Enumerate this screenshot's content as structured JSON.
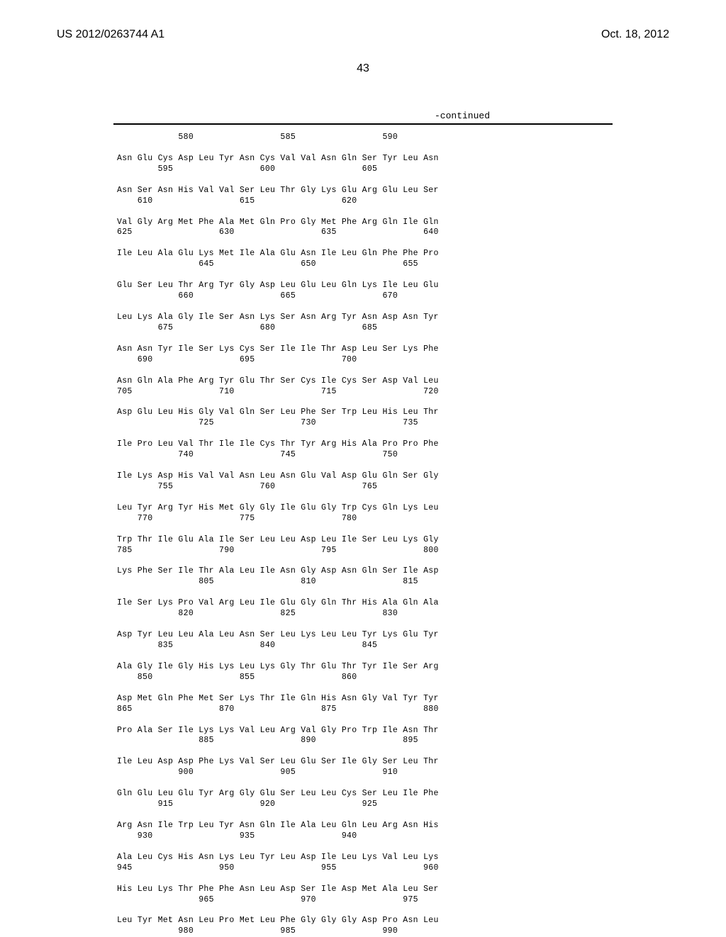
{
  "header": {
    "document_number": "US 2012/0263744 A1",
    "date": "Oct. 18, 2012"
  },
  "page_number": "43",
  "continued_label": "-continued",
  "sequence_rows": [
    {
      "type": "number",
      "text": "            580                 585                 590"
    },
    {
      "type": "blank"
    },
    {
      "type": "amino",
      "text": "Asn Glu Cys Asp Leu Tyr Asn Cys Val Val Asn Gln Ser Tyr Leu Asn"
    },
    {
      "type": "number",
      "text": "        595                 600                 605"
    },
    {
      "type": "blank"
    },
    {
      "type": "amino",
      "text": "Asn Ser Asn His Val Val Ser Leu Thr Gly Lys Glu Arg Glu Leu Ser"
    },
    {
      "type": "number",
      "text": "    610                 615                 620"
    },
    {
      "type": "blank"
    },
    {
      "type": "amino",
      "text": "Val Gly Arg Met Phe Ala Met Gln Pro Gly Met Phe Arg Gln Ile Gln"
    },
    {
      "type": "number",
      "text": "625                 630                 635                 640"
    },
    {
      "type": "blank"
    },
    {
      "type": "amino",
      "text": "Ile Leu Ala Glu Lys Met Ile Ala Glu Asn Ile Leu Gln Phe Phe Pro"
    },
    {
      "type": "number",
      "text": "                645                 650                 655"
    },
    {
      "type": "blank"
    },
    {
      "type": "amino",
      "text": "Glu Ser Leu Thr Arg Tyr Gly Asp Leu Glu Leu Gln Lys Ile Leu Glu"
    },
    {
      "type": "number",
      "text": "            660                 665                 670"
    },
    {
      "type": "blank"
    },
    {
      "type": "amino",
      "text": "Leu Lys Ala Gly Ile Ser Asn Lys Ser Asn Arg Tyr Asn Asp Asn Tyr"
    },
    {
      "type": "number",
      "text": "        675                 680                 685"
    },
    {
      "type": "blank"
    },
    {
      "type": "amino",
      "text": "Asn Asn Tyr Ile Ser Lys Cys Ser Ile Ile Thr Asp Leu Ser Lys Phe"
    },
    {
      "type": "number",
      "text": "    690                 695                 700"
    },
    {
      "type": "blank"
    },
    {
      "type": "amino",
      "text": "Asn Gln Ala Phe Arg Tyr Glu Thr Ser Cys Ile Cys Ser Asp Val Leu"
    },
    {
      "type": "number",
      "text": "705                 710                 715                 720"
    },
    {
      "type": "blank"
    },
    {
      "type": "amino",
      "text": "Asp Glu Leu His Gly Val Gln Ser Leu Phe Ser Trp Leu His Leu Thr"
    },
    {
      "type": "number",
      "text": "                725                 730                 735"
    },
    {
      "type": "blank"
    },
    {
      "type": "amino",
      "text": "Ile Pro Leu Val Thr Ile Ile Cys Thr Tyr Arg His Ala Pro Pro Phe"
    },
    {
      "type": "number",
      "text": "            740                 745                 750"
    },
    {
      "type": "blank"
    },
    {
      "type": "amino",
      "text": "Ile Lys Asp His Val Val Asn Leu Asn Glu Val Asp Glu Gln Ser Gly"
    },
    {
      "type": "number",
      "text": "        755                 760                 765"
    },
    {
      "type": "blank"
    },
    {
      "type": "amino",
      "text": "Leu Tyr Arg Tyr His Met Gly Gly Ile Glu Gly Trp Cys Gln Lys Leu"
    },
    {
      "type": "number",
      "text": "    770                 775                 780"
    },
    {
      "type": "blank"
    },
    {
      "type": "amino",
      "text": "Trp Thr Ile Glu Ala Ile Ser Leu Leu Asp Leu Ile Ser Leu Lys Gly"
    },
    {
      "type": "number",
      "text": "785                 790                 795                 800"
    },
    {
      "type": "blank"
    },
    {
      "type": "amino",
      "text": "Lys Phe Ser Ile Thr Ala Leu Ile Asn Gly Asp Asn Gln Ser Ile Asp"
    },
    {
      "type": "number",
      "text": "                805                 810                 815"
    },
    {
      "type": "blank"
    },
    {
      "type": "amino",
      "text": "Ile Ser Lys Pro Val Arg Leu Ile Glu Gly Gln Thr His Ala Gln Ala"
    },
    {
      "type": "number",
      "text": "            820                 825                 830"
    },
    {
      "type": "blank"
    },
    {
      "type": "amino",
      "text": "Asp Tyr Leu Leu Ala Leu Asn Ser Leu Lys Leu Leu Tyr Lys Glu Tyr"
    },
    {
      "type": "number",
      "text": "        835                 840                 845"
    },
    {
      "type": "blank"
    },
    {
      "type": "amino",
      "text": "Ala Gly Ile Gly His Lys Leu Lys Gly Thr Glu Thr Tyr Ile Ser Arg"
    },
    {
      "type": "number",
      "text": "    850                 855                 860"
    },
    {
      "type": "blank"
    },
    {
      "type": "amino",
      "text": "Asp Met Gln Phe Met Ser Lys Thr Ile Gln His Asn Gly Val Tyr Tyr"
    },
    {
      "type": "number",
      "text": "865                 870                 875                 880"
    },
    {
      "type": "blank"
    },
    {
      "type": "amino",
      "text": "Pro Ala Ser Ile Lys Lys Val Leu Arg Val Gly Pro Trp Ile Asn Thr"
    },
    {
      "type": "number",
      "text": "                885                 890                 895"
    },
    {
      "type": "blank"
    },
    {
      "type": "amino",
      "text": "Ile Leu Asp Asp Phe Lys Val Ser Leu Glu Ser Ile Gly Ser Leu Thr"
    },
    {
      "type": "number",
      "text": "            900                 905                 910"
    },
    {
      "type": "blank"
    },
    {
      "type": "amino",
      "text": "Gln Glu Leu Glu Tyr Arg Gly Glu Ser Leu Leu Cys Ser Leu Ile Phe"
    },
    {
      "type": "number",
      "text": "        915                 920                 925"
    },
    {
      "type": "blank"
    },
    {
      "type": "amino",
      "text": "Arg Asn Ile Trp Leu Tyr Asn Gln Ile Ala Leu Gln Leu Arg Asn His"
    },
    {
      "type": "number",
      "text": "    930                 935                 940"
    },
    {
      "type": "blank"
    },
    {
      "type": "amino",
      "text": "Ala Leu Cys His Asn Lys Leu Tyr Leu Asp Ile Leu Lys Val Leu Lys"
    },
    {
      "type": "number",
      "text": "945                 950                 955                 960"
    },
    {
      "type": "blank"
    },
    {
      "type": "amino",
      "text": "His Leu Lys Thr Phe Phe Asn Leu Asp Ser Ile Asp Met Ala Leu Ser"
    },
    {
      "type": "number",
      "text": "                965                 970                 975"
    },
    {
      "type": "blank"
    },
    {
      "type": "amino",
      "text": "Leu Tyr Met Asn Leu Pro Met Leu Phe Gly Gly Gly Asp Pro Asn Leu"
    },
    {
      "type": "number",
      "text": "            980                 985                 990"
    }
  ]
}
